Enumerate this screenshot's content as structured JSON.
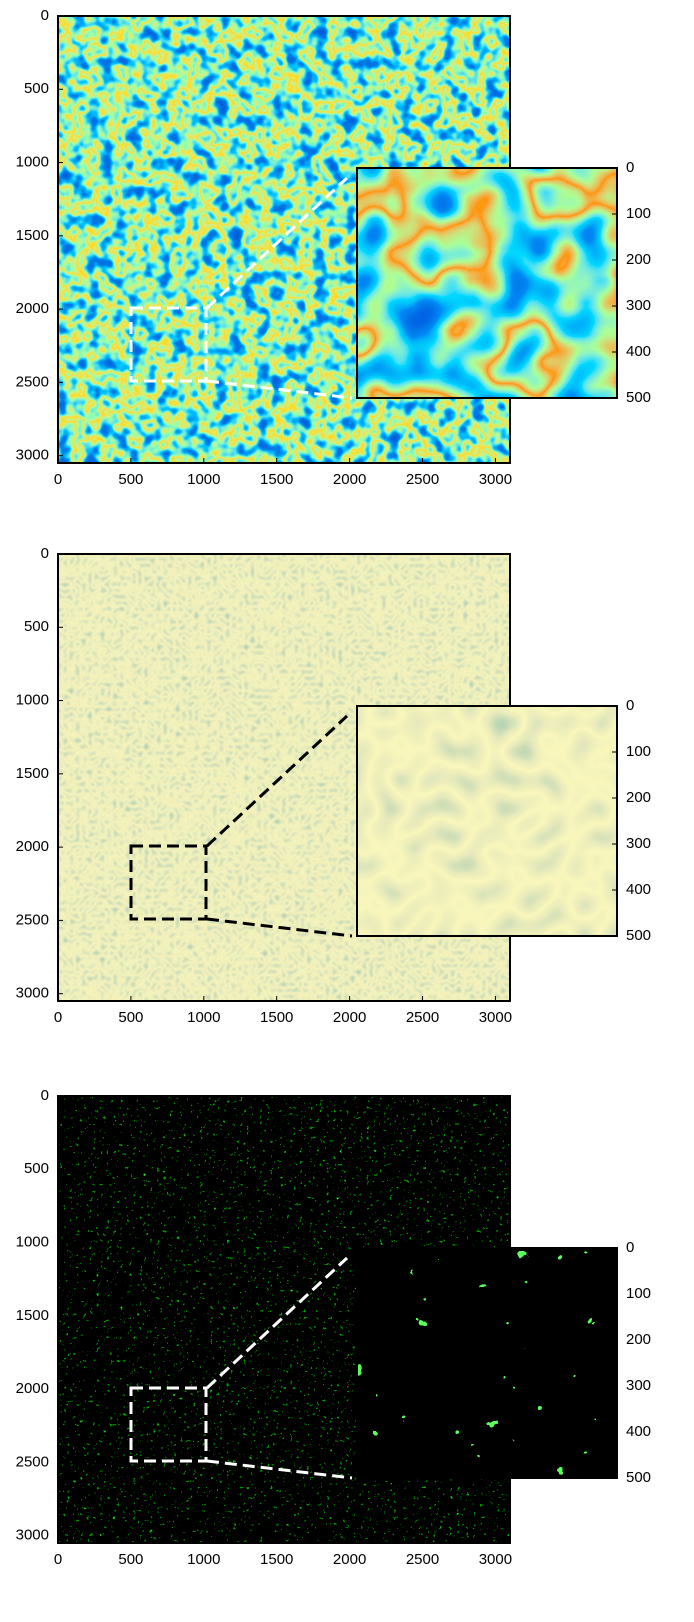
{
  "chart_data": [
    {
      "type": "heatmap",
      "xlim": [
        0,
        3100
      ],
      "ylim": [
        0,
        3050
      ],
      "xticks": [
        0,
        500,
        1000,
        1500,
        2000,
        2500,
        3000
      ],
      "yticks": [
        0,
        500,
        1000,
        1500,
        2000,
        2500,
        3000
      ],
      "inset": {
        "ylim": [
          0,
          500
        ],
        "yticks": [
          0,
          100,
          200,
          300,
          400,
          500
        ]
      }
    },
    {
      "type": "heatmap",
      "xlim": [
        0,
        3100
      ],
      "ylim": [
        0,
        3050
      ],
      "xticks": [
        0,
        500,
        1000,
        1500,
        2000,
        2500,
        3000
      ],
      "yticks": [
        0,
        500,
        1000,
        1500,
        2000,
        2500,
        3000
      ],
      "inset": {
        "ylim": [
          0,
          500
        ],
        "yticks": [
          0,
          100,
          200,
          300,
          400,
          500
        ]
      }
    },
    {
      "type": "heatmap",
      "xlim": [
        0,
        3100
      ],
      "ylim": [
        0,
        3050
      ],
      "xticks": [
        0,
        500,
        1000,
        1500,
        2000,
        2500,
        3000
      ],
      "yticks": [
        0,
        500,
        1000,
        1500,
        2000,
        2500,
        3000
      ],
      "inset": {
        "ylim": [
          0,
          500
        ],
        "yticks": [
          0,
          100,
          200,
          300,
          400,
          500
        ]
      }
    }
  ]
}
